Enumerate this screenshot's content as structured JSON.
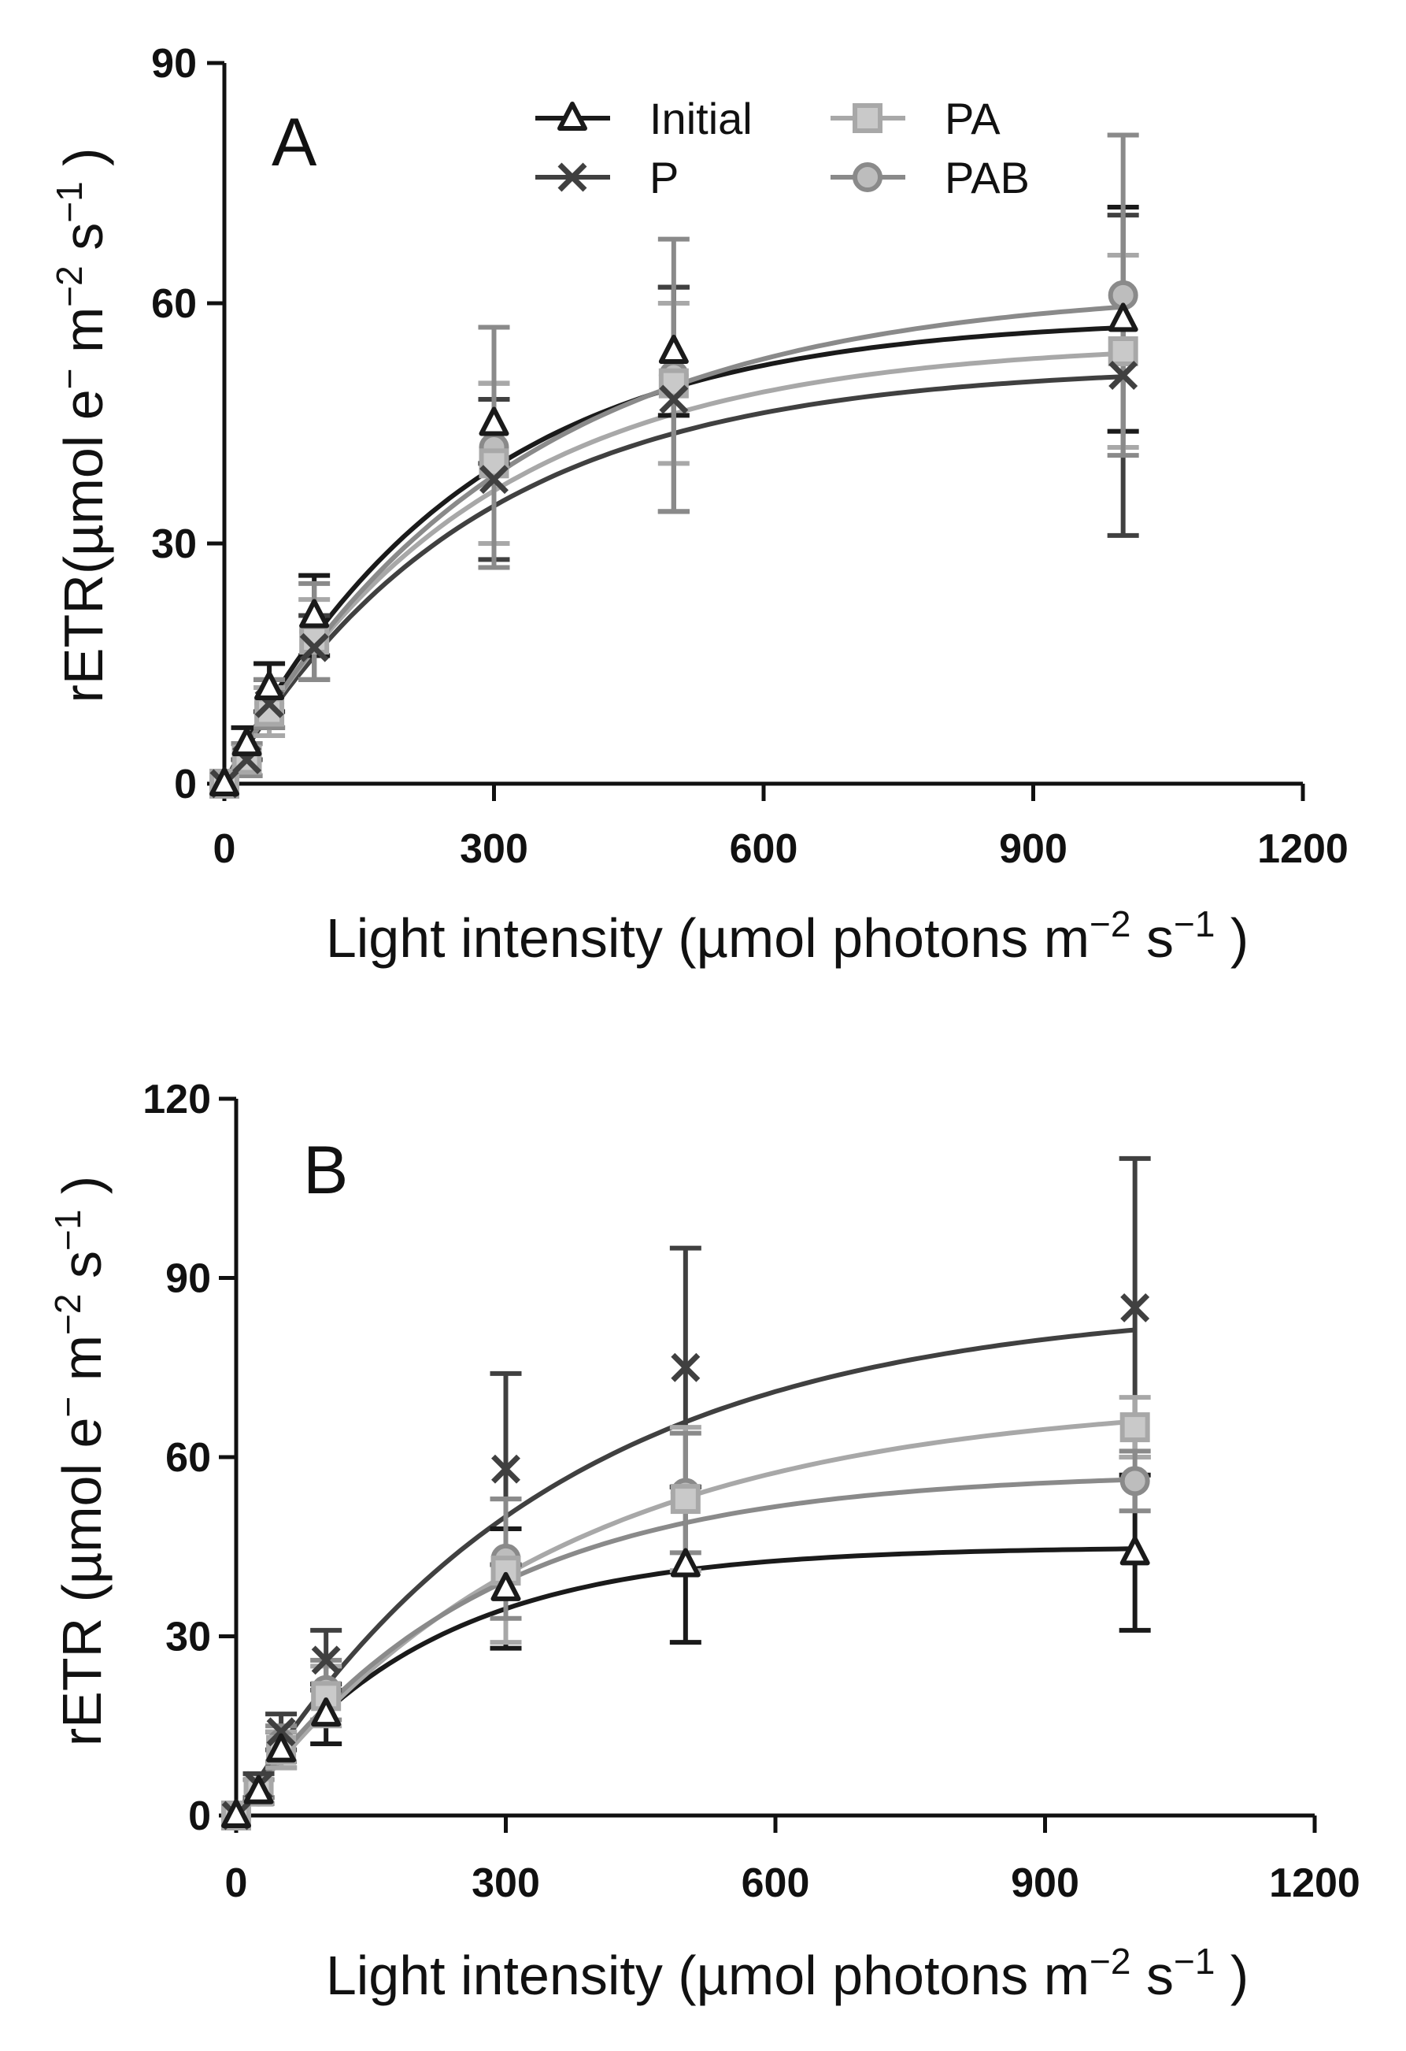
{
  "chart_data": [
    {
      "type": "line",
      "panel_label": "A",
      "xlabel": {
        "main": "Light intensity (µmol photons m",
        "exp1": "−2",
        "mid": " s",
        "exp2": "−1",
        "end": " )"
      },
      "ylabel": {
        "main": "rETR(µmol e",
        "exp0": "−",
        "mid1": " m",
        "exp1": "−2",
        "mid2": " s",
        "exp2": "−1",
        "end": " )"
      },
      "xlim": [
        0,
        1200
      ],
      "ylim": [
        0,
        90
      ],
      "xticks": [
        "0",
        "300",
        "600",
        "900",
        "1200"
      ],
      "yticks": [
        "0",
        "30",
        "60",
        "90"
      ],
      "x": [
        0,
        25,
        50,
        100,
        300,
        500,
        1000
      ],
      "legend_position": "top",
      "series": [
        {
          "name": "Initial",
          "marker": "triangle",
          "color": "#1a1a1a",
          "values": [
            0,
            5,
            12,
            21,
            45,
            54,
            58
          ],
          "errors": [
            0,
            2,
            3,
            5,
            5,
            8,
            14
          ],
          "curve": {
            "pmax": 58.3,
            "alpha": 0.22
          }
        },
        {
          "name": "P",
          "marker": "x",
          "color": "#404040",
          "values": [
            0,
            3,
            10,
            17,
            38,
            48,
            51
          ],
          "errors": [
            0,
            2,
            3,
            4,
            10,
            14,
            20
          ],
          "curve": {
            "pmax": 52.2,
            "alpha": 0.19
          }
        },
        {
          "name": "PA",
          "marker": "square",
          "color": "#a8a8a8",
          "values": [
            0,
            3,
            9,
            18,
            40,
            50,
            54
          ],
          "errors": [
            0,
            2,
            3,
            5,
            10,
            10,
            12
          ],
          "curve": {
            "pmax": 55.2,
            "alpha": 0.2
          }
        },
        {
          "name": "PAB",
          "marker": "circle",
          "color": "#8a8a8a",
          "values": [
            0,
            3,
            10,
            19,
            42,
            51,
            61
          ],
          "errors": [
            0,
            2,
            3,
            6,
            15,
            17,
            20
          ],
          "curve": {
            "pmax": 62,
            "alpha": 0.2
          }
        }
      ]
    },
    {
      "type": "line",
      "panel_label": "B",
      "xlabel": {
        "main": "Light intensity (µmol photons m",
        "exp1": "−2",
        "mid": " s",
        "exp2": "−1",
        "end": " )"
      },
      "ylabel": {
        "main": "rETR (µmol e",
        "exp0": "−",
        "mid1": "  m",
        "exp1": "−2",
        "mid2": " s",
        "exp2": "−1",
        "end": " )"
      },
      "xlim": [
        0,
        1200
      ],
      "ylim": [
        0,
        120
      ],
      "xticks": [
        "0",
        "300",
        "600",
        "900",
        "1200"
      ],
      "yticks": [
        "0",
        "30",
        "60",
        "90",
        "120"
      ],
      "x": [
        0,
        25,
        50,
        100,
        300,
        500,
        1000
      ],
      "series": [
        {
          "name": "Initial",
          "marker": "triangle",
          "color": "#1a1a1a",
          "values": [
            0,
            4,
            11,
            17,
            38,
            42,
            44
          ],
          "errors": [
            0,
            2,
            3,
            5,
            10,
            13,
            13
          ],
          "curve": {
            "pmax": 45,
            "alpha": 0.22
          }
        },
        {
          "name": "P",
          "marker": "x",
          "color": "#404040",
          "values": [
            0,
            5,
            14,
            26,
            58,
            75,
            85
          ],
          "errors": [
            0,
            2,
            3,
            5,
            16,
            20,
            25
          ],
          "curve": {
            "pmax": 86,
            "alpha": 0.25
          }
        },
        {
          "name": "PA",
          "marker": "square",
          "color": "#a8a8a8",
          "values": [
            0,
            4,
            11,
            20,
            41,
            53,
            65
          ],
          "errors": [
            0,
            2,
            3,
            5,
            12,
            12,
            5
          ],
          "curve": {
            "pmax": 70,
            "alpha": 0.2
          }
        },
        {
          "name": "PAB",
          "marker": "circle",
          "color": "#8a8a8a",
          "values": [
            0,
            4,
            12,
            21,
            43,
            54,
            56
          ],
          "errors": [
            0,
            2,
            3,
            5,
            10,
            10,
            5
          ],
          "curve": {
            "pmax": 57.5,
            "alpha": 0.22
          }
        }
      ]
    }
  ]
}
